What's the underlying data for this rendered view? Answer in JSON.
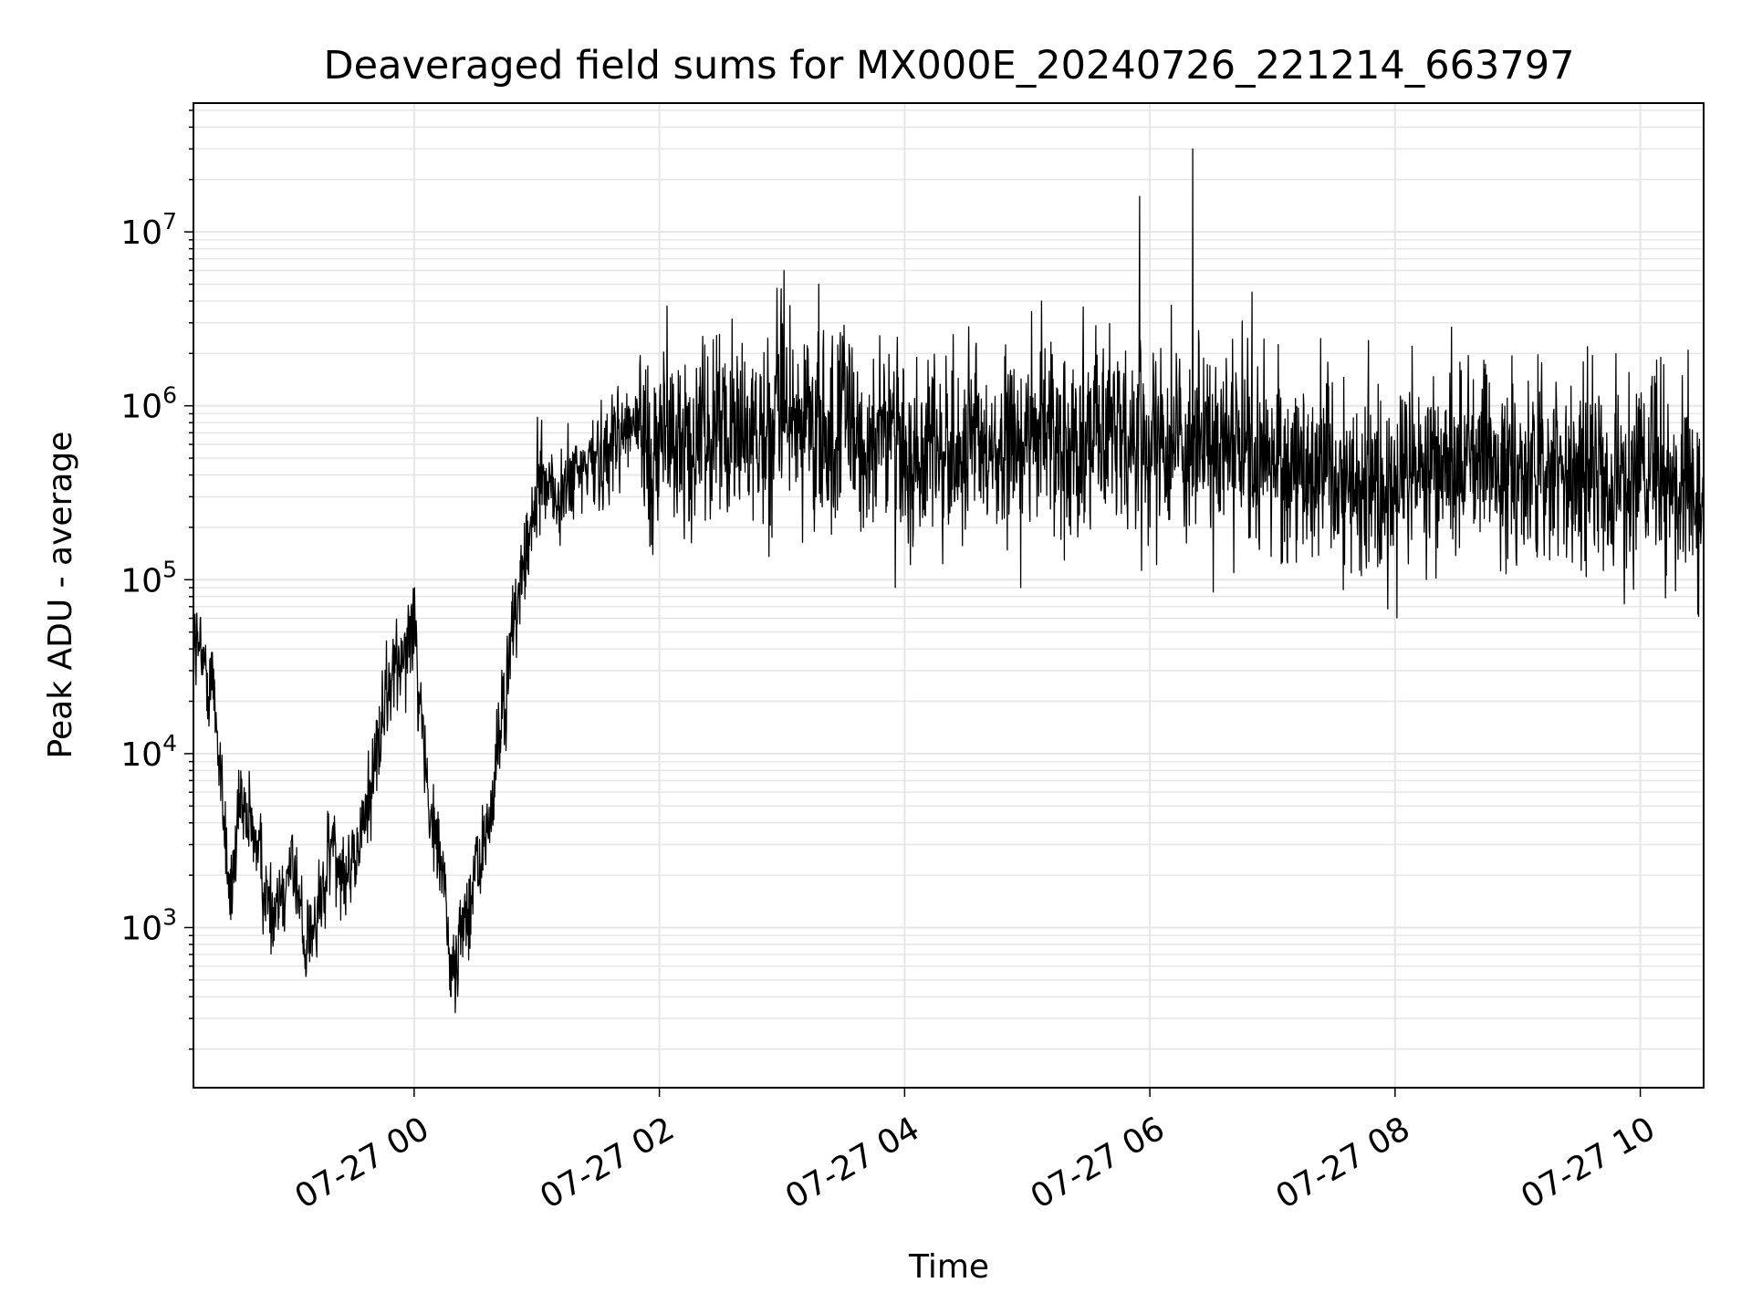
{
  "chart_data": {
    "type": "line",
    "title": "Deaveraged field sums for MX000E_20240726_221214_663797",
    "xlabel": "Time",
    "ylabel": "Peak ADU - average",
    "yscale": "log",
    "ylim": [
      120,
      55000000
    ],
    "xlim": [
      "2024-07-26T22:12",
      "2024-07-27T10:31"
    ],
    "grid": true,
    "line_color": "#000000",
    "grid_color": "#e6e6e6",
    "x_ticks": [
      {
        "label": "07-27 00",
        "time": "2024-07-27T00:00"
      },
      {
        "label": "07-27 02",
        "time": "2024-07-27T02:00"
      },
      {
        "label": "07-27 04",
        "time": "2024-07-27T04:00"
      },
      {
        "label": "07-27 06",
        "time": "2024-07-27T06:00"
      },
      {
        "label": "07-27 08",
        "time": "2024-07-27T08:00"
      },
      {
        "label": "07-27 10",
        "time": "2024-07-27T10:00"
      }
    ],
    "y_ticks": [
      {
        "base": "10",
        "exp": "3",
        "value": 1000
      },
      {
        "base": "10",
        "exp": "4",
        "value": 10000
      },
      {
        "base": "10",
        "exp": "5",
        "value": 100000
      },
      {
        "base": "10",
        "exp": "6",
        "value": 1000000
      },
      {
        "base": "10",
        "exp": "7",
        "value": 10000000
      }
    ],
    "series": [
      {
        "x": [
          "2024-07-26T22:12",
          "2024-07-26T22:15",
          "2024-07-26T22:18",
          "2024-07-26T22:22",
          "2024-07-26T22:25",
          "2024-07-26T22:30",
          "2024-07-26T22:35",
          "2024-07-26T22:42",
          "2024-07-26T22:50",
          "2024-07-26T23:00",
          "2024-07-26T23:06",
          "2024-07-26T23:12",
          "2024-07-26T23:20",
          "2024-07-26T23:30",
          "2024-07-26T23:40",
          "2024-07-26T23:50",
          "2024-07-27T00:00",
          "2024-07-27T00:08",
          "2024-07-27T00:15",
          "2024-07-27T00:18",
          "2024-07-27T00:25",
          "2024-07-27T00:35",
          "2024-07-27T00:45",
          "2024-07-27T00:52",
          "2024-07-27T00:56",
          "2024-07-27T01:02",
          "2024-07-27T01:10",
          "2024-07-27T01:20",
          "2024-07-27T01:30",
          "2024-07-27T01:40",
          "2024-07-27T01:48",
          "2024-07-27T02:00",
          "2024-07-27T02:30",
          "2024-07-27T03:00",
          "2024-07-27T03:30",
          "2024-07-27T04:00",
          "2024-07-27T04:30",
          "2024-07-27T05:00",
          "2024-07-27T05:30",
          "2024-07-27T06:00",
          "2024-07-27T06:30",
          "2024-07-27T07:00",
          "2024-07-27T07:30",
          "2024-07-27T08:00",
          "2024-07-27T08:30",
          "2024-07-27T09:00",
          "2024-07-27T09:30",
          "2024-07-27T10:00",
          "2024-07-27T10:31"
        ],
        "y": [
          50000,
          35000,
          30000,
          25000,
          8000,
          1500,
          4500,
          3500,
          1200,
          2500,
          900,
          1000,
          3000,
          2000,
          8000,
          30000,
          60000,
          4000,
          2000,
          500,
          1200,
          3000,
          25000,
          100000,
          150000,
          450000,
          280000,
          400000,
          500000,
          700000,
          800000,
          600000,
          750000,
          800000,
          650000,
          600000,
          500000,
          600000,
          700000,
          650000,
          550000,
          500000,
          420000,
          350000,
          480000,
          450000,
          400000,
          350000,
          380000
        ]
      }
    ],
    "spikes": [
      {
        "x": "2024-07-27T03:01",
        "y": 6000000
      },
      {
        "x": "2024-07-27T05:55",
        "y": 16000000
      },
      {
        "x": "2024-07-27T06:21",
        "y": 30000000
      },
      {
        "x": "2024-07-27T06:50",
        "y": 4500000
      },
      {
        "x": "2024-07-27T05:07",
        "y": 4000000
      },
      {
        "x": "2024-07-27T03:18",
        "y": 5000000
      },
      {
        "x": "2024-07-27T10:10",
        "y": 1900000
      }
    ]
  }
}
